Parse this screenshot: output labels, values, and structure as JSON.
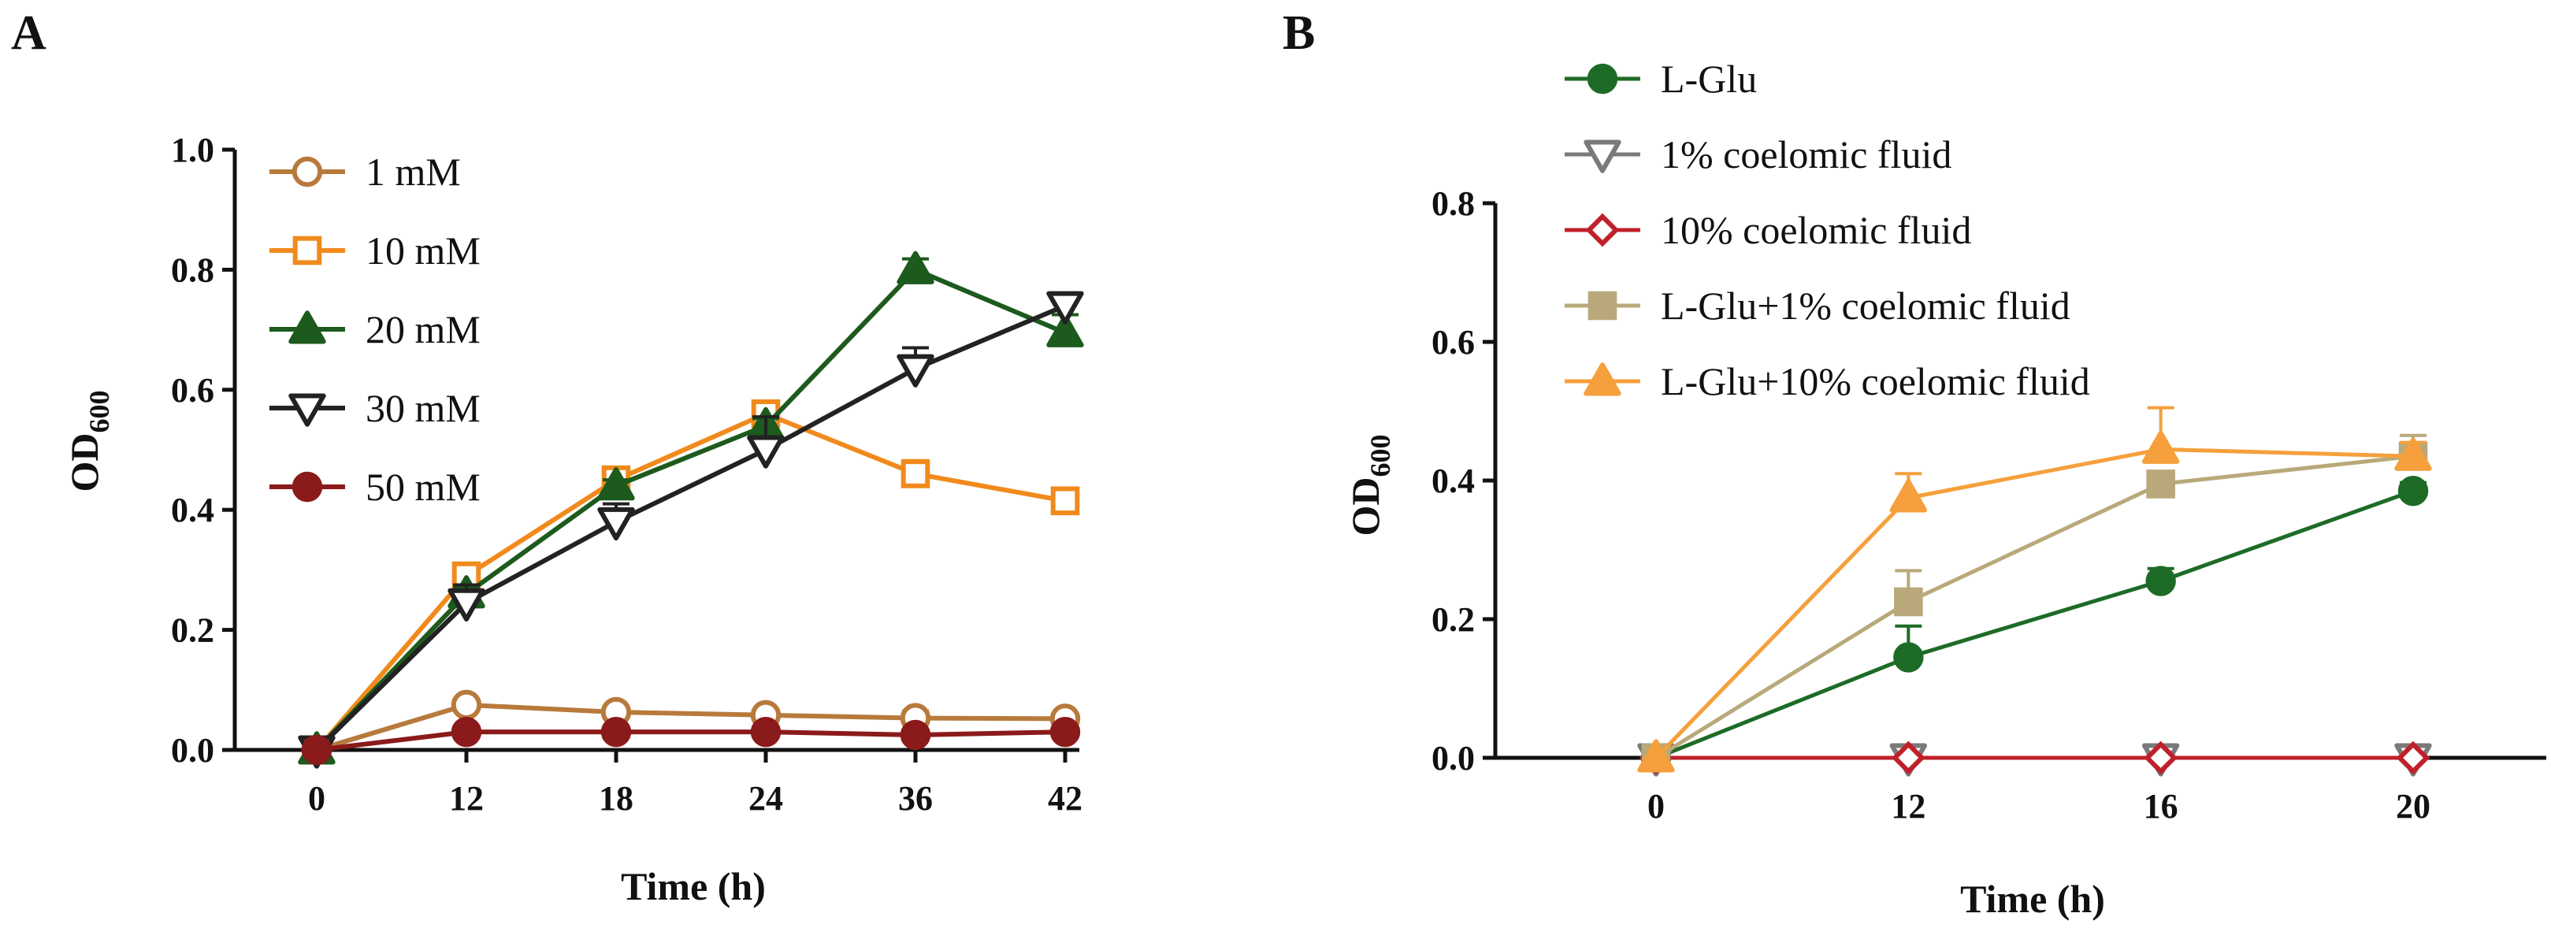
{
  "figure_panels": [
    "A",
    "B"
  ],
  "chart_data": [
    {
      "panel": "A",
      "type": "line",
      "title": "",
      "xlabel": "Time (h)",
      "ylabel": {
        "main": "OD",
        "sub": "600"
      },
      "categories": [
        "0",
        "12",
        "18",
        "24",
        "36",
        "42"
      ],
      "x_scale": "categorical",
      "ylim": [
        0,
        1.0
      ],
      "yticks": [
        "0.0",
        "0.2",
        "0.4",
        "0.6",
        "0.8",
        "1.0"
      ],
      "grid": false,
      "legend_position": "top-left",
      "series": [
        {
          "name": "1 mM",
          "color": "#b87a3c",
          "marker": "circle-open",
          "values": [
            0.0,
            0.075,
            0.063,
            0.058,
            0.053,
            0.052
          ],
          "errors": [
            0.0,
            0.005,
            0.005,
            0.005,
            0.012,
            0.008
          ]
        },
        {
          "name": "10 mM",
          "color": "#f18a1c",
          "marker": "square-open",
          "values": [
            0.0,
            0.29,
            0.45,
            0.56,
            0.46,
            0.415
          ],
          "errors": [
            0.0,
            0.012,
            0.012,
            0.012,
            0.022,
            0.012
          ]
        },
        {
          "name": "20 mM",
          "color": "#1d5a1d",
          "marker": "triangle-up-filled",
          "values": [
            0.0,
            0.26,
            0.44,
            0.54,
            0.8,
            0.695
          ],
          "errors": [
            0.0,
            0.01,
            0.01,
            0.012,
            0.018,
            0.03
          ]
        },
        {
          "name": "30 mM",
          "color": "#222222",
          "marker": "triangle-down-open",
          "values": [
            0.0,
            0.245,
            0.38,
            0.5,
            0.635,
            0.74
          ],
          "errors": [
            0.0,
            0.03,
            0.03,
            0.055,
            0.035,
            0.012
          ]
        },
        {
          "name": "50 mM",
          "color": "#8b1a1a",
          "marker": "circle-filled",
          "values": [
            0.0,
            0.03,
            0.03,
            0.03,
            0.025,
            0.03
          ],
          "errors": [
            0.0,
            0.005,
            0.005,
            0.005,
            0.005,
            0.005
          ]
        }
      ]
    },
    {
      "panel": "B",
      "type": "line",
      "title": "",
      "xlabel": "Time (h)",
      "ylabel": {
        "main": "OD",
        "sub": "600"
      },
      "categories": [
        "0",
        "12",
        "16",
        "20"
      ],
      "x_scale": "categorical",
      "ylim": [
        0,
        0.8
      ],
      "yticks": [
        "0.0",
        "0.2",
        "0.4",
        "0.6",
        "0.8"
      ],
      "grid": false,
      "legend_position": "top",
      "series": [
        {
          "name": "L-Glu",
          "color": "#1d6b26",
          "marker": "circle-filled",
          "values": [
            0.0,
            0.145,
            0.255,
            0.385
          ],
          "errors": [
            0.0,
            0.045,
            0.018,
            0.012
          ]
        },
        {
          "name": "1% coelomic fluid",
          "color": "#7a7a7a",
          "marker": "triangle-down-open",
          "values": [
            0.0,
            0.0,
            0.0,
            0.0
          ],
          "errors": [
            0.0,
            0.0,
            0.0,
            0.0
          ]
        },
        {
          "name": "10% coelomic fluid",
          "color": "#c0202a",
          "marker": "diamond-open",
          "values": [
            0.0,
            0.0,
            0.0,
            0.0
          ],
          "errors": [
            0.0,
            0.0,
            0.0,
            0.0
          ]
        },
        {
          "name": "L-Glu+1% coelomic fluid",
          "color": "#b9a97a",
          "marker": "square-filled",
          "values": [
            0.0,
            0.225,
            0.395,
            0.435
          ],
          "errors": [
            0.0,
            0.045,
            0.015,
            0.03
          ]
        },
        {
          "name": "L-Glu+10% coelomic fluid",
          "color": "#f5a03c",
          "marker": "triangle-up-filled",
          "values": [
            0.0,
            0.375,
            0.445,
            0.435
          ],
          "errors": [
            0.0,
            0.035,
            0.06,
            0.02
          ]
        }
      ]
    }
  ]
}
